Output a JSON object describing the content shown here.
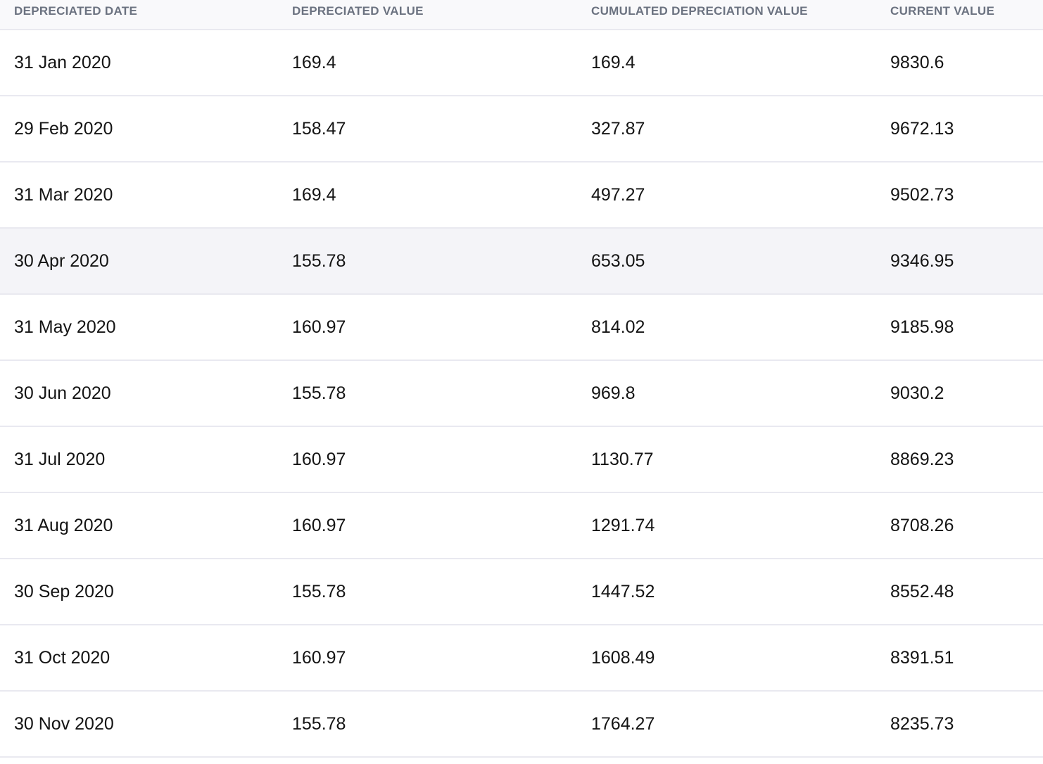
{
  "table": {
    "columns": [
      "DEPRECIATED DATE",
      "DEPRECIATED VALUE",
      "CUMULATED DEPRECIATION VALUE",
      "CURRENT VALUE"
    ],
    "rows": [
      [
        "31 Jan 2020",
        "169.4",
        "169.4",
        "9830.6"
      ],
      [
        "29 Feb 2020",
        "158.47",
        "327.87",
        "9672.13"
      ],
      [
        "31 Mar 2020",
        "169.4",
        "497.27",
        "9502.73"
      ],
      [
        "30 Apr 2020",
        "155.78",
        "653.05",
        "9346.95"
      ],
      [
        "31 May 2020",
        "160.97",
        "814.02",
        "9185.98"
      ],
      [
        "30 Jun 2020",
        "155.78",
        "969.8",
        "9030.2"
      ],
      [
        "31 Jul 2020",
        "160.97",
        "1130.77",
        "8869.23"
      ],
      [
        "31 Aug 2020",
        "160.97",
        "1291.74",
        "8708.26"
      ],
      [
        "30 Sep 2020",
        "155.78",
        "1447.52",
        "8552.48"
      ],
      [
        "31 Oct 2020",
        "160.97",
        "1608.49",
        "8391.51"
      ],
      [
        "30 Nov 2020",
        "155.78",
        "1764.27",
        "8235.73"
      ]
    ],
    "highlighted_row_index": 3,
    "colors": {
      "header_bg": "#f9f9fb",
      "header_text": "#6b7280",
      "row_border": "#e9e9f0",
      "highlight_bg": "#f4f4f8",
      "cell_text": "#141414"
    }
  }
}
